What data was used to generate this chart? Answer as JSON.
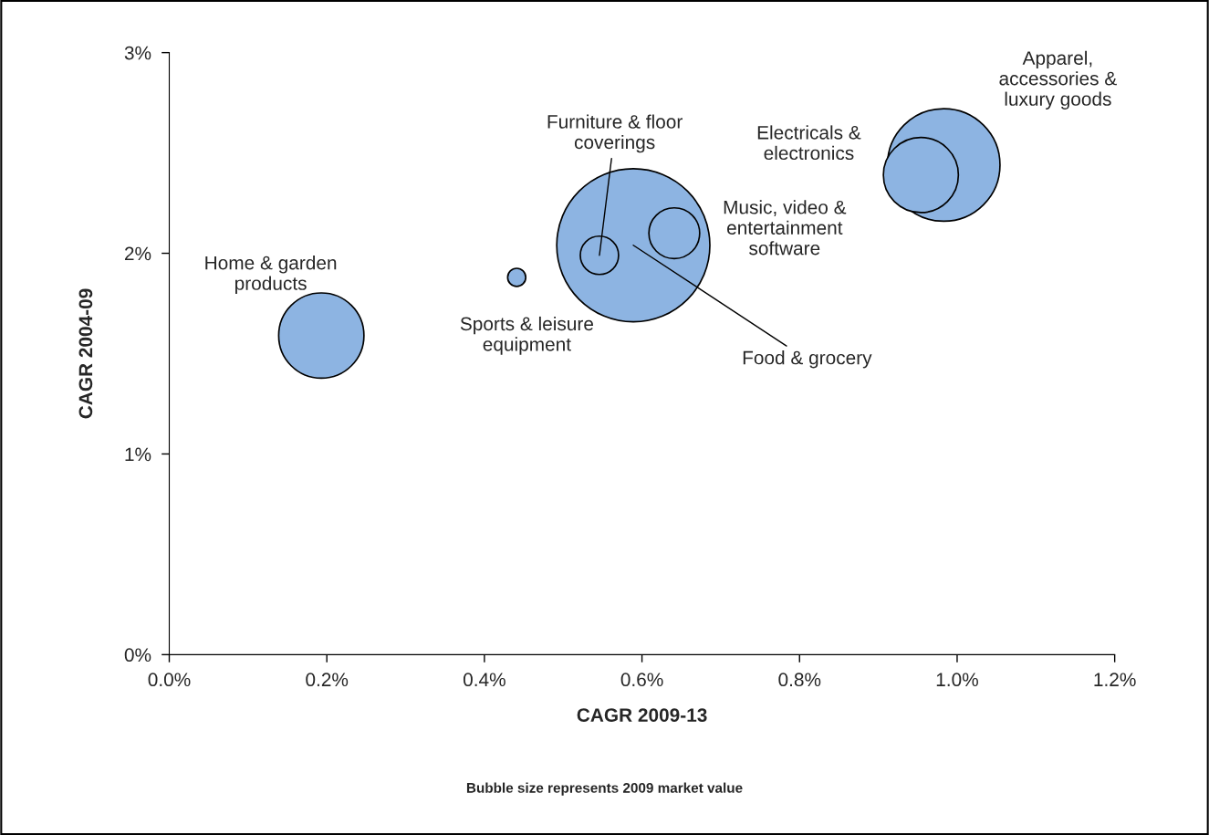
{
  "chart_data": {
    "type": "bubble",
    "xlabel": "CAGR 2009-13",
    "ylabel": "CAGR 2004-09",
    "series": [
      {
        "color": "#8db4e2",
        "x": [
          0.193,
          0.441,
          0.589,
          0.546,
          0.641,
          0.983,
          0.954
        ],
        "values": [
          1.59,
          1.88,
          2.04,
          1.99,
          2.1,
          2.44,
          2.39
        ],
        "sizes": [
          0.31,
          0.014,
          1,
          0.0625,
          0.11,
          0.54,
          0.24
        ]
      }
    ],
    "xlim": [
      0,
      1.2
    ],
    "xticks": [
      {
        "value": 0,
        "label": "0.0%"
      },
      {
        "value": 0.2,
        "label": "0.2%"
      },
      {
        "value": 0.4,
        "label": "0.4%"
      },
      {
        "value": 0.6,
        "label": "0.6%"
      },
      {
        "value": 0.8,
        "label": "0.8%"
      },
      {
        "value": 1.0,
        "label": "1.0%"
      },
      {
        "value": 1.2,
        "label": "1.2%"
      }
    ],
    "ylim": [
      0,
      3
    ],
    "yticks": [
      {
        "value": 0,
        "label": "0%"
      },
      {
        "value": 1,
        "label": "1%"
      },
      {
        "value": 2,
        "label": "2%"
      },
      {
        "value": 3,
        "label": "3%"
      }
    ],
    "grid": false,
    "legend": false,
    "annotations": [
      {
        "text": "Home & garden\nproducts",
        "x": 0.193,
        "y": 1.59
      },
      {
        "text": "Sports & leisure\nequipment",
        "x": 0.441,
        "y": 1.88
      },
      {
        "text": "Food & grocery",
        "x": 0.589,
        "y": 2.04
      },
      {
        "text": "Furniture & floor\ncoverings",
        "x": 0.546,
        "y": 1.99
      },
      {
        "text": "Music, video &\nentertainment\nsoftware",
        "x": 0.641,
        "y": 2.1
      },
      "Apparel,\naccessories &\nluxury goods",
      "Electricals &\nelectronics",
      "Bubble size represents 2009 market value"
    ]
  }
}
